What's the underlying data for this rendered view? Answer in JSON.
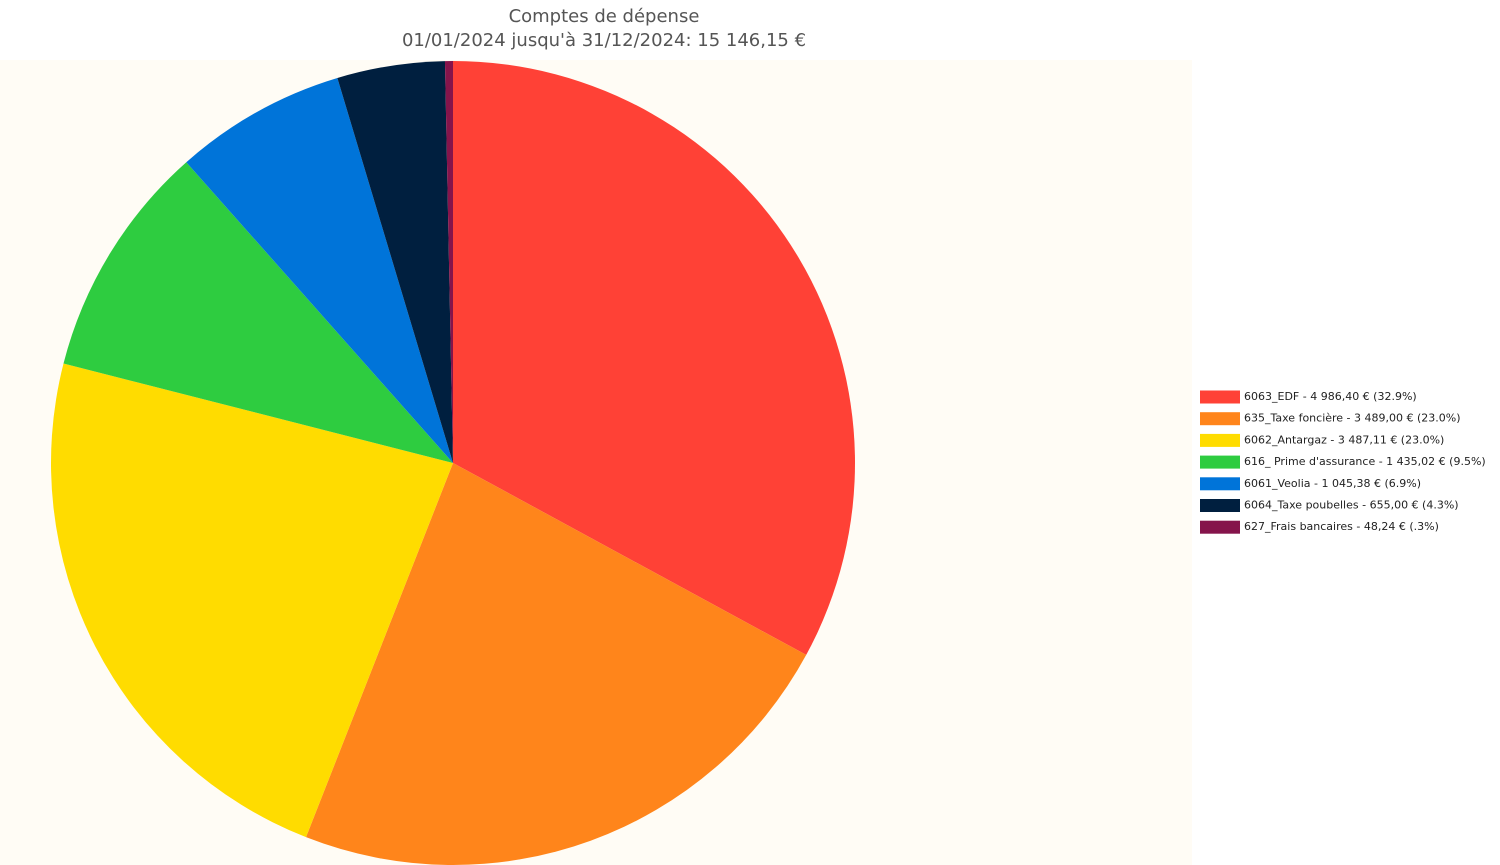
{
  "chart_data": {
    "type": "pie",
    "title": "Comptes de dépense",
    "subtitle": "01/01/2024 jusqu'à 31/12/2024: 15 146,15 €",
    "categories": [
      "6063_EDF - 4 986,40 € (32.9%)",
      "635_Taxe foncière - 3 489,00 € (23.0%)",
      "6062_Antargaz - 3 487,11 € (23.0%)",
      "616_ Prime d'assurance - 1 435,02 € (9.5%)",
      "6061_Veolia - 1 045,38 € (6.9%)",
      "6064_Taxe poubelles - 655,00 € (4.3%)",
      "627_Frais bancaires - 48,24 € (.3%)"
    ],
    "values": [
      4986.4,
      3489.0,
      3487.11,
      1435.02,
      1045.38,
      655.0,
      48.24
    ],
    "colors": [
      "#ff4136",
      "#ff851b",
      "#ffdc00",
      "#2ecc40",
      "#0074d9",
      "#001f3f",
      "#85144b"
    ],
    "legend": "right"
  }
}
